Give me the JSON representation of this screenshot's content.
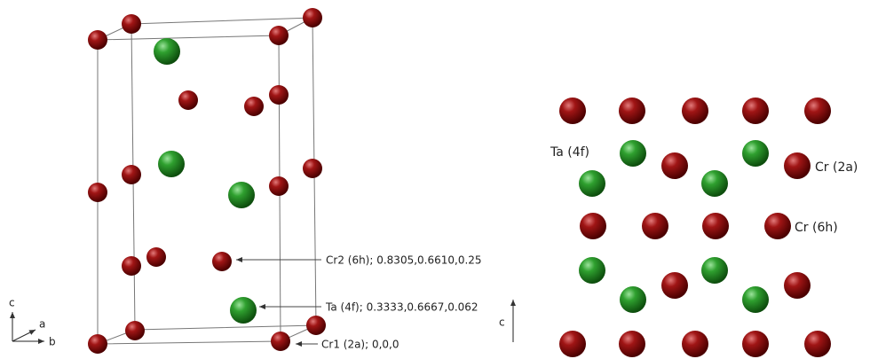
{
  "left_structure": {
    "axes": {
      "c": "c",
      "a": "a",
      "b": "b"
    },
    "labels": [
      "Cr2 (6h); 0.8305,0.6610,0.25",
      "Ta (4f); 0.3333,0.6667,0.062",
      "Cr1 (2a); 0,0,0"
    ]
  },
  "right_structure": {
    "labels": [
      "Ta (4f)",
      "Cr (2a)",
      "Cr (6h)"
    ],
    "axis": "c"
  }
}
